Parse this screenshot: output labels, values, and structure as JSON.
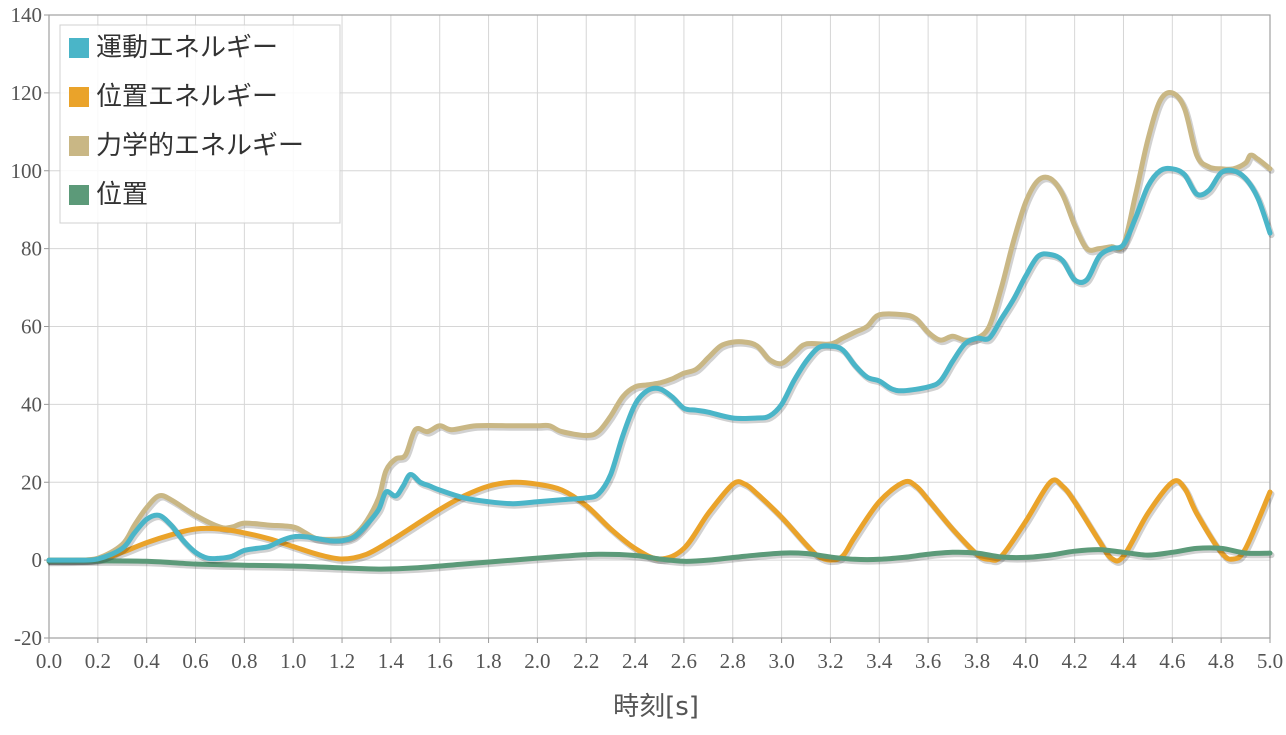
{
  "chart_data": {
    "type": "line",
    "title": "",
    "xlabel": "時刻[s]",
    "ylabel": "",
    "xlim": [
      0,
      5
    ],
    "ylim": [
      -20,
      140
    ],
    "x_ticks": [
      "0.0",
      "0.2",
      "0.4",
      "0.6",
      "0.8",
      "1.0",
      "1.2",
      "1.4",
      "1.6",
      "1.8",
      "2.0",
      "2.2",
      "2.4",
      "2.6",
      "2.8",
      "3.0",
      "3.2",
      "3.4",
      "3.6",
      "3.8",
      "4.0",
      "4.2",
      "4.4",
      "4.6",
      "4.8",
      "5.0"
    ],
    "y_ticks": [
      "-20",
      "0",
      "20",
      "40",
      "60",
      "80",
      "100",
      "120",
      "140"
    ],
    "grid": true,
    "legend_position": "top-left",
    "series": [
      {
        "name": "運動エネルギー",
        "color": "#4ab5c8",
        "points": [
          [
            0,
            0
          ],
          [
            0.1,
            0
          ],
          [
            0.2,
            0.3
          ],
          [
            0.3,
            3
          ],
          [
            0.35,
            7
          ],
          [
            0.4,
            10.5
          ],
          [
            0.45,
            11.5
          ],
          [
            0.5,
            9
          ],
          [
            0.55,
            5
          ],
          [
            0.6,
            2
          ],
          [
            0.65,
            0.5
          ],
          [
            0.7,
            0.5
          ],
          [
            0.75,
            1
          ],
          [
            0.8,
            2.5
          ],
          [
            0.85,
            3
          ],
          [
            0.9,
            3.5
          ],
          [
            0.95,
            5
          ],
          [
            1.0,
            6
          ],
          [
            1.05,
            6
          ],
          [
            1.1,
            5.5
          ],
          [
            1.15,
            5
          ],
          [
            1.2,
            5
          ],
          [
            1.25,
            6
          ],
          [
            1.3,
            9
          ],
          [
            1.35,
            13
          ],
          [
            1.38,
            17.5
          ],
          [
            1.42,
            16.5
          ],
          [
            1.45,
            19
          ],
          [
            1.48,
            22
          ],
          [
            1.52,
            20
          ],
          [
            1.56,
            19
          ],
          [
            1.6,
            18
          ],
          [
            1.7,
            16
          ],
          [
            1.8,
            15
          ],
          [
            1.9,
            14.5
          ],
          [
            2.0,
            15
          ],
          [
            2.1,
            15.5
          ],
          [
            2.2,
            16
          ],
          [
            2.25,
            17
          ],
          [
            2.3,
            22
          ],
          [
            2.35,
            32
          ],
          [
            2.4,
            40
          ],
          [
            2.45,
            43.5
          ],
          [
            2.5,
            44
          ],
          [
            2.55,
            42
          ],
          [
            2.6,
            39
          ],
          [
            2.65,
            38.5
          ],
          [
            2.7,
            38
          ],
          [
            2.8,
            36.5
          ],
          [
            2.9,
            36.5
          ],
          [
            2.95,
            37
          ],
          [
            3.0,
            40
          ],
          [
            3.05,
            46
          ],
          [
            3.1,
            51
          ],
          [
            3.15,
            54.5
          ],
          [
            3.2,
            55
          ],
          [
            3.25,
            54
          ],
          [
            3.3,
            50
          ],
          [
            3.35,
            47
          ],
          [
            3.4,
            46
          ],
          [
            3.45,
            44
          ],
          [
            3.5,
            43.5
          ],
          [
            3.6,
            44.5
          ],
          [
            3.65,
            46
          ],
          [
            3.7,
            51
          ],
          [
            3.75,
            55.5
          ],
          [
            3.8,
            57
          ],
          [
            3.85,
            57
          ],
          [
            3.9,
            62
          ],
          [
            3.95,
            67
          ],
          [
            4.0,
            73
          ],
          [
            4.05,
            78
          ],
          [
            4.1,
            78.5
          ],
          [
            4.15,
            77
          ],
          [
            4.2,
            72
          ],
          [
            4.25,
            72
          ],
          [
            4.3,
            78
          ],
          [
            4.35,
            80
          ],
          [
            4.4,
            81
          ],
          [
            4.45,
            88
          ],
          [
            4.5,
            96
          ],
          [
            4.55,
            100
          ],
          [
            4.6,
            100.5
          ],
          [
            4.65,
            99
          ],
          [
            4.7,
            94
          ],
          [
            4.75,
            95
          ],
          [
            4.8,
            99.5
          ],
          [
            4.85,
            100
          ],
          [
            4.9,
            98
          ],
          [
            4.95,
            93
          ],
          [
            5.0,
            84
          ]
        ]
      },
      {
        "name": "位置エネルギー",
        "color": "#eaa32a",
        "points": [
          [
            0,
            0
          ],
          [
            0.2,
            0.2
          ],
          [
            0.3,
            2
          ],
          [
            0.4,
            4.5
          ],
          [
            0.5,
            6.5
          ],
          [
            0.6,
            8
          ],
          [
            0.7,
            8
          ],
          [
            0.8,
            7
          ],
          [
            0.9,
            5.5
          ],
          [
            1.0,
            3.5
          ],
          [
            1.1,
            1.5
          ],
          [
            1.2,
            0.3
          ],
          [
            1.3,
            1.5
          ],
          [
            1.4,
            5
          ],
          [
            1.5,
            9
          ],
          [
            1.6,
            13
          ],
          [
            1.7,
            16.5
          ],
          [
            1.8,
            19
          ],
          [
            1.9,
            20
          ],
          [
            2.0,
            19.5
          ],
          [
            2.1,
            18
          ],
          [
            2.2,
            14
          ],
          [
            2.3,
            8
          ],
          [
            2.4,
            3
          ],
          [
            2.5,
            0.3
          ],
          [
            2.6,
            3
          ],
          [
            2.7,
            12
          ],
          [
            2.8,
            19.5
          ],
          [
            2.85,
            19.5
          ],
          [
            2.9,
            17
          ],
          [
            3.0,
            11
          ],
          [
            3.1,
            4
          ],
          [
            3.15,
            1
          ],
          [
            3.2,
            0
          ],
          [
            3.25,
            1
          ],
          [
            3.3,
            6
          ],
          [
            3.4,
            15
          ],
          [
            3.5,
            20
          ],
          [
            3.55,
            19
          ],
          [
            3.6,
            15.5
          ],
          [
            3.7,
            8
          ],
          [
            3.8,
            1.5
          ],
          [
            3.85,
            0.2
          ],
          [
            3.9,
            1
          ],
          [
            4.0,
            10
          ],
          [
            4.1,
            20
          ],
          [
            4.15,
            19
          ],
          [
            4.2,
            15
          ],
          [
            4.3,
            5
          ],
          [
            4.35,
            0.5
          ],
          [
            4.4,
            1
          ],
          [
            4.5,
            12
          ],
          [
            4.6,
            20
          ],
          [
            4.65,
            18.5
          ],
          [
            4.7,
            12
          ],
          [
            4.8,
            2
          ],
          [
            4.85,
            0.3
          ],
          [
            4.9,
            3
          ],
          [
            5.0,
            17.5
          ]
        ]
      },
      {
        "name": "力学的エネルギー",
        "color": "#c9b785",
        "points": [
          [
            0,
            0
          ],
          [
            0.1,
            0
          ],
          [
            0.2,
            0.5
          ],
          [
            0.3,
            4
          ],
          [
            0.35,
            9
          ],
          [
            0.4,
            13.5
          ],
          [
            0.45,
            16.5
          ],
          [
            0.5,
            15.5
          ],
          [
            0.6,
            11.5
          ],
          [
            0.7,
            8.5
          ],
          [
            0.75,
            8.5
          ],
          [
            0.8,
            9.5
          ],
          [
            0.9,
            9
          ],
          [
            1.0,
            8.5
          ],
          [
            1.05,
            7
          ],
          [
            1.1,
            5.5
          ],
          [
            1.2,
            5.5
          ],
          [
            1.25,
            6.5
          ],
          [
            1.3,
            10
          ],
          [
            1.35,
            16
          ],
          [
            1.38,
            23
          ],
          [
            1.42,
            26
          ],
          [
            1.46,
            27
          ],
          [
            1.5,
            33.5
          ],
          [
            1.55,
            33
          ],
          [
            1.6,
            34.5
          ],
          [
            1.65,
            33.5
          ],
          [
            1.75,
            34.5
          ],
          [
            1.9,
            34.5
          ],
          [
            2.0,
            34.5
          ],
          [
            2.05,
            34.5
          ],
          [
            2.1,
            33
          ],
          [
            2.2,
            32
          ],
          [
            2.25,
            33
          ],
          [
            2.3,
            37
          ],
          [
            2.35,
            42
          ],
          [
            2.4,
            44.5
          ],
          [
            2.45,
            45
          ],
          [
            2.5,
            45.5
          ],
          [
            2.55,
            46.5
          ],
          [
            2.6,
            48
          ],
          [
            2.65,
            49
          ],
          [
            2.7,
            52
          ],
          [
            2.75,
            55
          ],
          [
            2.8,
            56
          ],
          [
            2.85,
            56
          ],
          [
            2.9,
            55
          ],
          [
            2.95,
            51.5
          ],
          [
            3.0,
            50.5
          ],
          [
            3.05,
            53
          ],
          [
            3.1,
            55.5
          ],
          [
            3.2,
            55.5
          ],
          [
            3.25,
            57
          ],
          [
            3.3,
            58.5
          ],
          [
            3.35,
            60
          ],
          [
            3.4,
            63
          ],
          [
            3.5,
            63
          ],
          [
            3.55,
            62
          ],
          [
            3.6,
            58.5
          ],
          [
            3.65,
            56.5
          ],
          [
            3.7,
            57.5
          ],
          [
            3.75,
            56.5
          ],
          [
            3.8,
            57
          ],
          [
            3.85,
            60
          ],
          [
            3.9,
            70
          ],
          [
            3.95,
            82
          ],
          [
            4.0,
            92
          ],
          [
            4.05,
            97.5
          ],
          [
            4.1,
            98
          ],
          [
            4.15,
            94
          ],
          [
            4.2,
            86
          ],
          [
            4.25,
            80
          ],
          [
            4.3,
            80
          ],
          [
            4.35,
            80.5
          ],
          [
            4.4,
            81
          ],
          [
            4.45,
            94
          ],
          [
            4.5,
            108
          ],
          [
            4.55,
            118
          ],
          [
            4.6,
            120
          ],
          [
            4.65,
            116
          ],
          [
            4.7,
            104
          ],
          [
            4.75,
            101
          ],
          [
            4.8,
            100.5
          ],
          [
            4.85,
            100.5
          ],
          [
            4.9,
            102
          ],
          [
            4.92,
            104
          ],
          [
            4.95,
            103
          ],
          [
            5.0,
            100.5
          ]
        ]
      },
      {
        "name": "位置",
        "color": "#5c9a79",
        "points": [
          [
            0,
            -0.3
          ],
          [
            0.2,
            -0.2
          ],
          [
            0.4,
            -0.3
          ],
          [
            0.6,
            -1
          ],
          [
            0.8,
            -1.3
          ],
          [
            1.0,
            -1.5
          ],
          [
            1.2,
            -2
          ],
          [
            1.35,
            -2.3
          ],
          [
            1.5,
            -2
          ],
          [
            1.7,
            -1
          ],
          [
            1.9,
            0
          ],
          [
            2.1,
            1
          ],
          [
            2.25,
            1.5
          ],
          [
            2.4,
            1.2
          ],
          [
            2.5,
            0.3
          ],
          [
            2.6,
            -0.3
          ],
          [
            2.7,
            0
          ],
          [
            2.85,
            1
          ],
          [
            3.0,
            1.8
          ],
          [
            3.1,
            1.7
          ],
          [
            3.2,
            0.8
          ],
          [
            3.3,
            0.2
          ],
          [
            3.4,
            0.2
          ],
          [
            3.5,
            0.7
          ],
          [
            3.6,
            1.5
          ],
          [
            3.7,
            2
          ],
          [
            3.8,
            1.8
          ],
          [
            3.9,
            0.8
          ],
          [
            4.0,
            0.7
          ],
          [
            4.1,
            1.3
          ],
          [
            4.2,
            2.3
          ],
          [
            4.3,
            2.7
          ],
          [
            4.4,
            2
          ],
          [
            4.5,
            1.3
          ],
          [
            4.6,
            2
          ],
          [
            4.7,
            3
          ],
          [
            4.8,
            3
          ],
          [
            4.9,
            1.8
          ],
          [
            5.0,
            1.8
          ]
        ]
      }
    ]
  }
}
